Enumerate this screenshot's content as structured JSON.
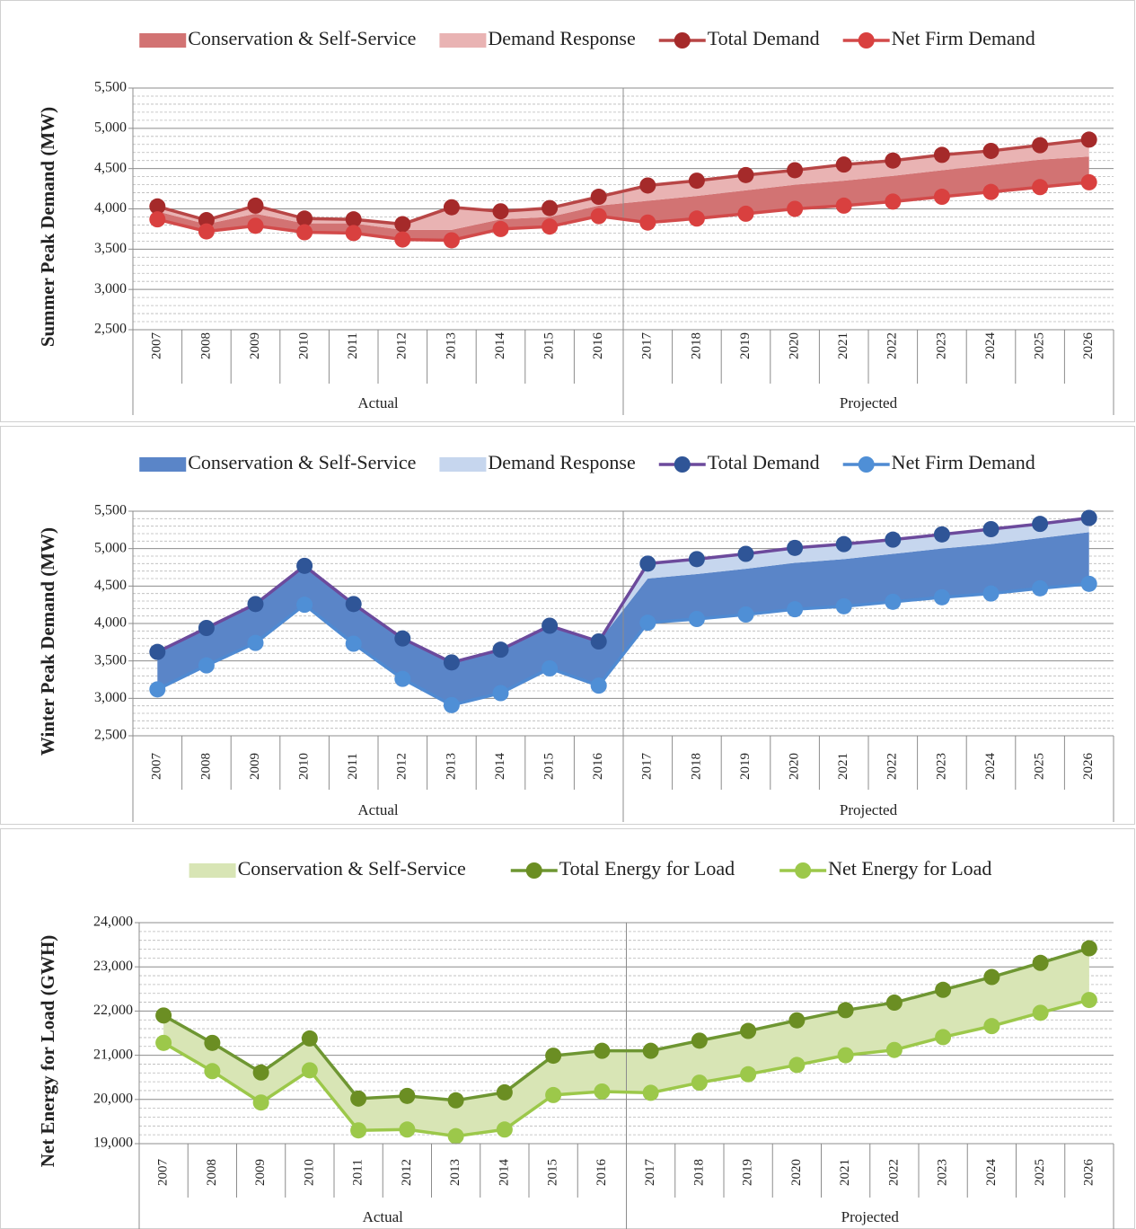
{
  "chart_data": [
    {
      "type": "line",
      "y_label": "Summer Peak Demand (MW)",
      "categories": [
        "2007",
        "2008",
        "2009",
        "2010",
        "2011",
        "2012",
        "2013",
        "2014",
        "2015",
        "2016",
        "2017",
        "2018",
        "2019",
        "2020",
        "2021",
        "2022",
        "2023",
        "2024",
        "2025",
        "2026"
      ],
      "groups": [
        {
          "label": "Actual",
          "from": "2007",
          "to": "2016"
        },
        {
          "label": "Projected",
          "from": "2017",
          "to": "2026"
        }
      ],
      "ylim": [
        2500,
        5500
      ],
      "yticks": [
        {
          "value": 2500,
          "label": "2,500"
        },
        {
          "value": 3000,
          "label": "3,000"
        },
        {
          "value": 3500,
          "label": "3,500"
        },
        {
          "value": 4000,
          "label": "4,000"
        },
        {
          "value": 4500,
          "label": "4,500"
        },
        {
          "value": 5000,
          "label": "5,000"
        },
        {
          "value": 5500,
          "label": "5,500"
        }
      ],
      "grid": true,
      "series": [
        {
          "name": "Conservation & Self-Service",
          "kind": "area",
          "color": "#d27373",
          "values": [
            100,
            90,
            150,
            110,
            120,
            120,
            130,
            120,
            120,
            130,
            270,
            280,
            290,
            300,
            310,
            320,
            330,
            335,
            340,
            320
          ]
        },
        {
          "name": "Demand Response",
          "kind": "area",
          "color": "#e9b3b3",
          "values": [
            60,
            50,
            100,
            60,
            50,
            70,
            280,
            100,
            110,
            110,
            190,
            190,
            190,
            180,
            200,
            190,
            190,
            175,
            180,
            210
          ]
        },
        {
          "name": "Total Demand",
          "kind": "line",
          "color": "#b84646",
          "marker_color": "#a52a2a",
          "values": [
            4030,
            3860,
            4040,
            3880,
            3870,
            3810,
            4020,
            3970,
            4010,
            4150,
            4290,
            4350,
            4420,
            4480,
            4550,
            4600,
            4670,
            4720,
            4790,
            4860
          ]
        },
        {
          "name": "Net Firm Demand",
          "kind": "line",
          "color": "#d24a4a",
          "marker_color": "#d9403f",
          "values": [
            3870,
            3720,
            3790,
            3710,
            3700,
            3620,
            3610,
            3750,
            3780,
            3910,
            3830,
            3880,
            3940,
            4000,
            4040,
            4090,
            4150,
            4210,
            4270,
            4330
          ]
        }
      ]
    },
    {
      "type": "line",
      "y_label": "Winter Peak Demand (MW)",
      "categories": [
        "2007",
        "2008",
        "2009",
        "2010",
        "2011",
        "2012",
        "2013",
        "2014",
        "2015",
        "2016",
        "2017",
        "2018",
        "2019",
        "2020",
        "2021",
        "2022",
        "2023",
        "2024",
        "2025",
        "2026"
      ],
      "groups": [
        {
          "label": "Actual",
          "from": "2007",
          "to": "2016"
        },
        {
          "label": "Projected",
          "from": "2017",
          "to": "2026"
        }
      ],
      "ylim": [
        2500,
        5500
      ],
      "yticks": [
        {
          "value": 2500,
          "label": "2,500"
        },
        {
          "value": 3000,
          "label": "3,000"
        },
        {
          "value": 3500,
          "label": "3,500"
        },
        {
          "value": 4000,
          "label": "4,000"
        },
        {
          "value": 4500,
          "label": "4,500"
        },
        {
          "value": 5000,
          "label": "5,000"
        },
        {
          "value": 5500,
          "label": "5,500"
        }
      ],
      "grid": true,
      "series": [
        {
          "name": "Conservation & Self-Service",
          "kind": "area",
          "color": "#5a85c8",
          "values": [
            500,
            500,
            520,
            520,
            530,
            540,
            570,
            580,
            570,
            590,
            590,
            600,
            610,
            620,
            630,
            640,
            650,
            660,
            670,
            690
          ]
        },
        {
          "name": "Demand Response",
          "kind": "area",
          "color": "#c6d6ee",
          "values": [
            0,
            0,
            0,
            0,
            0,
            0,
            0,
            0,
            0,
            0,
            200,
            200,
            200,
            200,
            200,
            190,
            190,
            200,
            190,
            190
          ]
        },
        {
          "name": "Total Demand",
          "kind": "line",
          "color": "#6c4a9c",
          "marker_color": "#2f5597",
          "values": [
            3620,
            3940,
            4260,
            4770,
            4260,
            3800,
            3480,
            3650,
            3970,
            3760,
            4800,
            4860,
            4930,
            5010,
            5060,
            5120,
            5190,
            5260,
            5330,
            5410
          ]
        },
        {
          "name": "Net Firm Demand",
          "kind": "line",
          "color": "#4f8ad2",
          "marker_color": "#4f8fd6",
          "values": [
            3120,
            3440,
            3740,
            4250,
            3730,
            3260,
            2910,
            3070,
            3400,
            3170,
            4010,
            4060,
            4120,
            4190,
            4230,
            4290,
            4350,
            4400,
            4470,
            4530
          ]
        }
      ]
    },
    {
      "type": "line",
      "y_label": "Net Energy for Load (GWH)",
      "categories": [
        "2007",
        "2008",
        "2009",
        "2010",
        "2011",
        "2012",
        "2013",
        "2014",
        "2015",
        "2016",
        "2017",
        "2018",
        "2019",
        "2020",
        "2021",
        "2022",
        "2023",
        "2024",
        "2025",
        "2026"
      ],
      "groups": [
        {
          "label": "Actual",
          "from": "2007",
          "to": "2016"
        },
        {
          "label": "Projected",
          "from": "2017",
          "to": "2026"
        }
      ],
      "ylim": [
        19000,
        24000
      ],
      "yticks": [
        {
          "value": 19000,
          "label": "19,000"
        },
        {
          "value": 20000,
          "label": "20,000"
        },
        {
          "value": 21000,
          "label": "21,000"
        },
        {
          "value": 22000,
          "label": "22,000"
        },
        {
          "value": 23000,
          "label": "23,000"
        },
        {
          "value": 24000,
          "label": "24,000"
        }
      ],
      "grid": true,
      "series": [
        {
          "name": "Conservation & Self-Service",
          "kind": "area",
          "color": "#d8e5b5",
          "values": [
            620,
            640,
            680,
            720,
            720,
            760,
            810,
            840,
            890,
            920,
            950,
            950,
            980,
            1010,
            1020,
            1070,
            1070,
            1110,
            1130,
            1170
          ]
        },
        {
          "name": "Total Energy for Load",
          "kind": "line",
          "color": "#6e9632",
          "marker_color": "#6b8e23",
          "values": [
            21900,
            21280,
            20610,
            21380,
            20020,
            20080,
            19980,
            20160,
            20990,
            21100,
            21100,
            21330,
            21550,
            21790,
            22020,
            22190,
            22480,
            22770,
            23090,
            23420
          ]
        },
        {
          "name": "Net Energy for Load",
          "kind": "line",
          "color": "#9cc84a",
          "marker_color": "#9cc84a",
          "values": [
            21280,
            20640,
            19930,
            20660,
            19300,
            19320,
            19170,
            19320,
            20100,
            20180,
            20150,
            20380,
            20570,
            20780,
            21000,
            21120,
            21410,
            21660,
            21960,
            22250
          ]
        }
      ]
    }
  ]
}
